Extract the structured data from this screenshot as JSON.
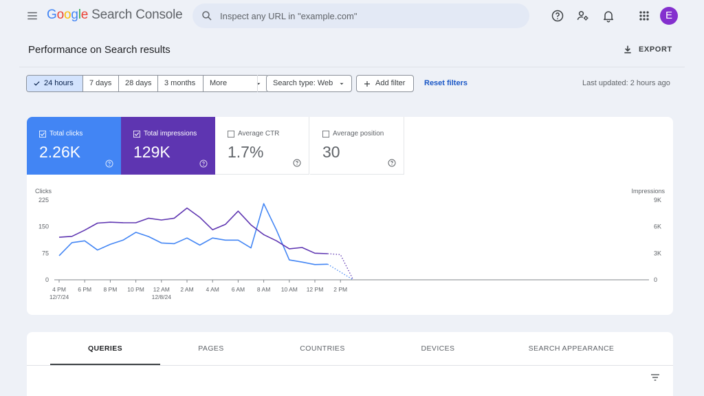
{
  "app": {
    "logo_letters": [
      "G",
      "o",
      "o",
      "g",
      "l",
      "e"
    ],
    "product": "Search Console"
  },
  "search": {
    "placeholder": "Inspect any URL in \"example.com\""
  },
  "icons": {
    "menu": "menu-icon",
    "search": "search-icon",
    "help": "help-icon",
    "manage_users": "manage-accounts-icon",
    "notifications": "bell-icon",
    "apps": "apps-grid-icon",
    "export": "download-icon",
    "filter": "filter-list-icon"
  },
  "user": {
    "avatar_letter": "E",
    "avatar_color": "#8430ce"
  },
  "page": {
    "title": "Performance on Search results",
    "export_label": "EXPORT"
  },
  "filters": {
    "ranges": [
      "24 hours",
      "7 days",
      "28 days",
      "3 months"
    ],
    "more_label": "More",
    "selected_range": "24 hours",
    "search_type": "Search type: Web",
    "add_filter": "Add filter",
    "reset": "Reset filters",
    "last_updated": "Last updated: 2 hours ago"
  },
  "metrics": [
    {
      "label": "Total clicks",
      "value": "2.26K",
      "selected": true,
      "color": "#4285f4"
    },
    {
      "label": "Total impressions",
      "value": "129K",
      "selected": true,
      "color": "#5e35b1"
    },
    {
      "label": "Average CTR",
      "value": "1.7%",
      "selected": false
    },
    {
      "label": "Average position",
      "value": "30",
      "selected": false
    }
  ],
  "chart_data": {
    "type": "line",
    "xlabel": "",
    "left_axis_label": "Clicks",
    "right_axis_label": "Impressions",
    "left_ticks": [
      "225",
      "150",
      "75",
      "0"
    ],
    "right_ticks": [
      "9K",
      "6K",
      "3K",
      "0"
    ],
    "ylim_left": [
      0,
      225
    ],
    "ylim_right": [
      0,
      9000
    ],
    "x_tick_labels": [
      {
        "line1": "4 PM",
        "line2": "12/7/24",
        "index": 0
      },
      {
        "line1": "6 PM",
        "line2": "",
        "index": 2
      },
      {
        "line1": "8 PM",
        "line2": "",
        "index": 4
      },
      {
        "line1": "10 PM",
        "line2": "",
        "index": 6
      },
      {
        "line1": "12 AM",
        "line2": "12/8/24",
        "index": 8
      },
      {
        "line1": "2 AM",
        "line2": "",
        "index": 10
      },
      {
        "line1": "4 AM",
        "line2": "",
        "index": 12
      },
      {
        "line1": "6 AM",
        "line2": "",
        "index": 14
      },
      {
        "line1": "8 AM",
        "line2": "",
        "index": 16
      },
      {
        "line1": "10 AM",
        "line2": "",
        "index": 18
      },
      {
        "line1": "12 PM",
        "line2": "",
        "index": 20
      },
      {
        "line1": "2 PM",
        "line2": "",
        "index": 22
      }
    ],
    "x_points": 24,
    "solid_until_index": 21,
    "series": [
      {
        "axis": "left",
        "color": "#4285f4",
        "values": [
          68,
          105,
          110,
          84,
          100,
          112,
          134,
          122,
          104,
          102,
          118,
          98,
          118,
          112,
          112,
          90,
          215,
          140,
          56,
          50,
          43,
          44,
          null,
          0
        ],
        "projected": [
          [
            21,
            44
          ],
          [
            23,
            0
          ]
        ]
      },
      {
        "axis": "right",
        "color": "#5e35b1",
        "values": [
          4800,
          4900,
          5600,
          6400,
          6500,
          6450,
          6440,
          6950,
          6750,
          6950,
          8100,
          7050,
          5650,
          6250,
          7750,
          6200,
          5100,
          4400,
          3500,
          3650,
          3000,
          2950,
          2850,
          0
        ],
        "projected": [
          [
            21,
            2950
          ],
          [
            22,
            2850
          ],
          [
            23,
            0
          ]
        ]
      }
    ]
  },
  "tabs": [
    {
      "label": "QUERIES",
      "active": true
    },
    {
      "label": "PAGES",
      "active": false
    },
    {
      "label": "COUNTRIES",
      "active": false
    },
    {
      "label": "DEVICES",
      "active": false
    },
    {
      "label": "SEARCH APPEARANCE",
      "active": false
    }
  ]
}
